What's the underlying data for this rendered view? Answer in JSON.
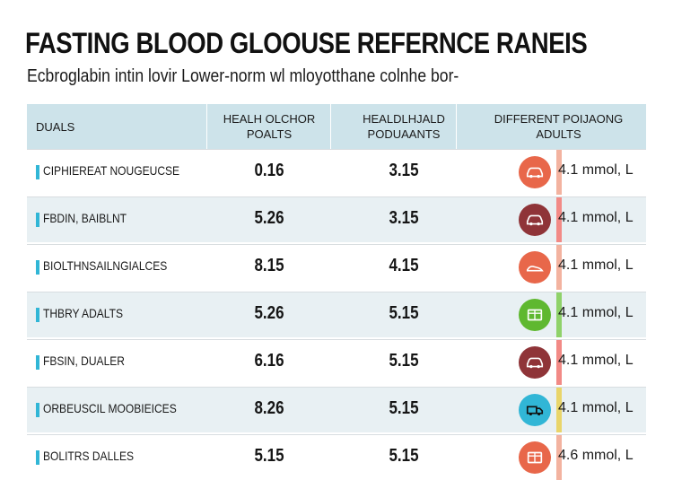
{
  "title": "FASTING BLOOD GLOOUSE REFERNCE RANEIS",
  "subtitle": "Ecbroglabin intin lovir Lower-norm wl mloyotthane colnhe bor-",
  "table": {
    "headers": {
      "col0": "DUALS",
      "col1": "HEALH OLCHOR POALTS",
      "col2": "HEALDLHJALD PODUAANTS",
      "col3": "DIFFERENT POIJAONG ADULTS"
    },
    "rows": [
      {
        "label": "CIPHIEREAT NOUGEUCSE",
        "v1": "0.16",
        "v2": "3.15",
        "mmol": "4.1 mmol, L",
        "icon": "car-icon",
        "icon_color": "#e8674a",
        "strip_color": "#f3b3a0"
      },
      {
        "label": "FBDIN, BAIBLNT",
        "v1": "5.26",
        "v2": "3.15",
        "mmol": "4.1 mmol, L",
        "icon": "car-icon",
        "icon_color": "#8f3438",
        "strip_color": "#f28a86"
      },
      {
        "label": "BIOLTHNSAILNGIALCES",
        "v1": "8.15",
        "v2": "4.15",
        "mmol": "4.1 mmol, L",
        "icon": "shoe-icon",
        "icon_color": "#e8674a",
        "strip_color": "#f3b3a0"
      },
      {
        "label": "THBRY ADALTS",
        "v1": "5.26",
        "v2": "5.15",
        "mmol": "4.1 mmol, L",
        "icon": "box-icon",
        "icon_color": "#5fb830",
        "strip_color": "#8fd26a"
      },
      {
        "label": "FBSIN, DUALER",
        "v1": "6.16",
        "v2": "5.15",
        "mmol": "4.1 mmol, L",
        "icon": "car-icon",
        "icon_color": "#8f3438",
        "strip_color": "#f28a86"
      },
      {
        "label": "ORBEUSCIL MOOBIEICES",
        "v1": "8.26",
        "v2": "5.15",
        "mmol": "4.1 mmol, L",
        "icon": "truck-icon",
        "icon_color": "#31b6d6",
        "strip_color": "#e9d56a"
      },
      {
        "label": "BOLITRS DALLES",
        "v1": "5.15",
        "v2": "5.15",
        "mmol": "4.6 mmol, L",
        "icon": "box-icon",
        "icon_color": "#e8674a",
        "strip_color": "#f3b3a0"
      }
    ]
  }
}
